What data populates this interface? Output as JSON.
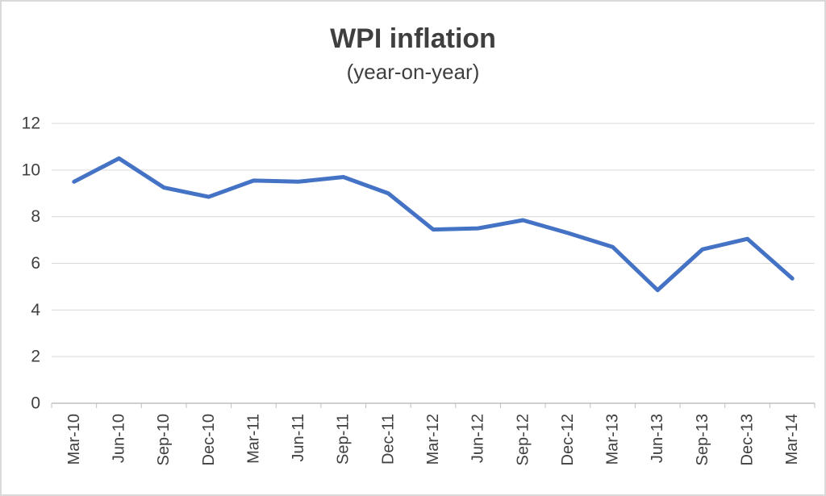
{
  "chart_data": {
    "type": "line",
    "title": "WPI inflation",
    "subtitle": "(year-on-year)",
    "categories": [
      "Mar-10",
      "Jun-10",
      "Sep-10",
      "Dec-10",
      "Mar-11",
      "Jun-11",
      "Sep-11",
      "Dec-11",
      "Mar-12",
      "Jun-12",
      "Sep-12",
      "Dec-12",
      "Mar-13",
      "Jun-13",
      "Sep-13",
      "Dec-13",
      "Mar-14"
    ],
    "values": [
      9.5,
      10.5,
      9.25,
      8.85,
      9.55,
      9.5,
      9.7,
      9.0,
      7.45,
      7.5,
      7.85,
      7.3,
      6.7,
      4.85,
      6.6,
      7.05,
      5.35
    ],
    "ylim": [
      0,
      12
    ],
    "yticks": [
      0,
      2,
      4,
      6,
      8,
      10,
      12
    ],
    "grid": "horizontal",
    "legend": "none",
    "line_color": "#4472C4",
    "grid_color": "#d9d9d9",
    "axis_color": "#bfbfbf",
    "label_color": "#404040"
  }
}
